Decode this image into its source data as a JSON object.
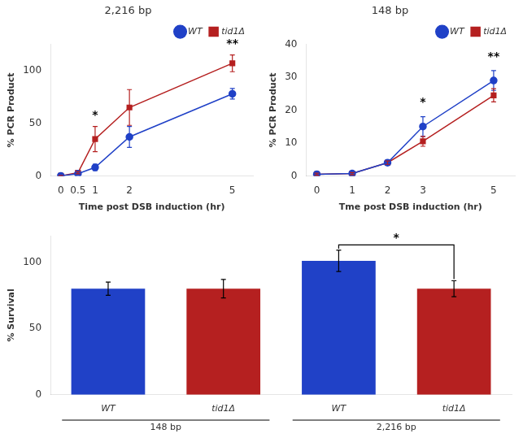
{
  "chart_data": [
    {
      "type": "line",
      "title": "2,216 bp",
      "xlabel": "Time post DSB induction (hr)",
      "ylabel": "% PCR Product",
      "x": [
        0,
        0.5,
        1,
        2,
        5
      ],
      "series": [
        {
          "name": "WT",
          "color": "#2041C7",
          "marker": "circle",
          "values": [
            0,
            2,
            8,
            37,
            78
          ],
          "errors": [
            0.5,
            1,
            3,
            10,
            5
          ]
        },
        {
          "name": "tid1Δ",
          "color": "#B52020",
          "marker": "square",
          "values": [
            0,
            3,
            35,
            65,
            107
          ],
          "errors": [
            0.5,
            1,
            12,
            17,
            8
          ]
        }
      ],
      "xlim": [
        -0.3,
        5.6
      ],
      "xticks": [
        0,
        0.5,
        1,
        2,
        5
      ],
      "ylim": [
        0,
        125
      ],
      "yticks": [
        0,
        50,
        100
      ],
      "grid": false,
      "legend": "upper right",
      "annotations": [
        {
          "text": "*",
          "x": 1,
          "y": 50
        },
        {
          "text": "**",
          "x": 5,
          "y": 118
        }
      ]
    },
    {
      "type": "line",
      "title": "148 bp",
      "xlabel": "Tme post DSB induction (hr)",
      "ylabel": "% PCR Product",
      "x": [
        0,
        1,
        2,
        3,
        5
      ],
      "series": [
        {
          "name": "WT",
          "color": "#2041C7",
          "marker": "circle",
          "values": [
            0.5,
            0.7,
            4,
            15,
            29
          ],
          "errors": [
            0.3,
            0.3,
            0.5,
            3,
            3
          ]
        },
        {
          "name": "tid1Δ",
          "color": "#B52020",
          "marker": "square",
          "values": [
            0.5,
            0.7,
            4,
            10.5,
            24.5
          ],
          "errors": [
            0.3,
            0.3,
            0.5,
            1.5,
            2
          ]
        }
      ],
      "xlim": [
        -0.3,
        5.6
      ],
      "xticks": [
        0,
        1,
        2,
        3,
        5
      ],
      "ylim": [
        0,
        40
      ],
      "yticks": [
        0,
        10,
        20,
        30,
        40
      ],
      "grid": false,
      "legend": "upper right",
      "annotations": [
        {
          "text": "*",
          "x": 3,
          "y": 20
        },
        {
          "text": "**",
          "x": 5,
          "y": 34
        }
      ]
    },
    {
      "type": "bar",
      "ylabel": "% Survival",
      "groups": [
        {
          "label": "148 bp",
          "categories": [
            "WT",
            "tid1Δ"
          ]
        },
        {
          "label": "2,216 bp",
          "categories": [
            "WT",
            "tid1Δ"
          ]
        }
      ],
      "values": [
        80,
        80,
        101,
        80
      ],
      "errors": [
        5,
        7,
        8,
        6
      ],
      "colors": [
        "#2041C7",
        "#B52020",
        "#2041C7",
        "#B52020"
      ],
      "ylim": [
        0,
        120
      ],
      "yticks": [
        0,
        50,
        100
      ],
      "grid": false,
      "annotations": [
        {
          "text": "*",
          "x": [
            2,
            3
          ],
          "y": 113
        }
      ]
    }
  ]
}
